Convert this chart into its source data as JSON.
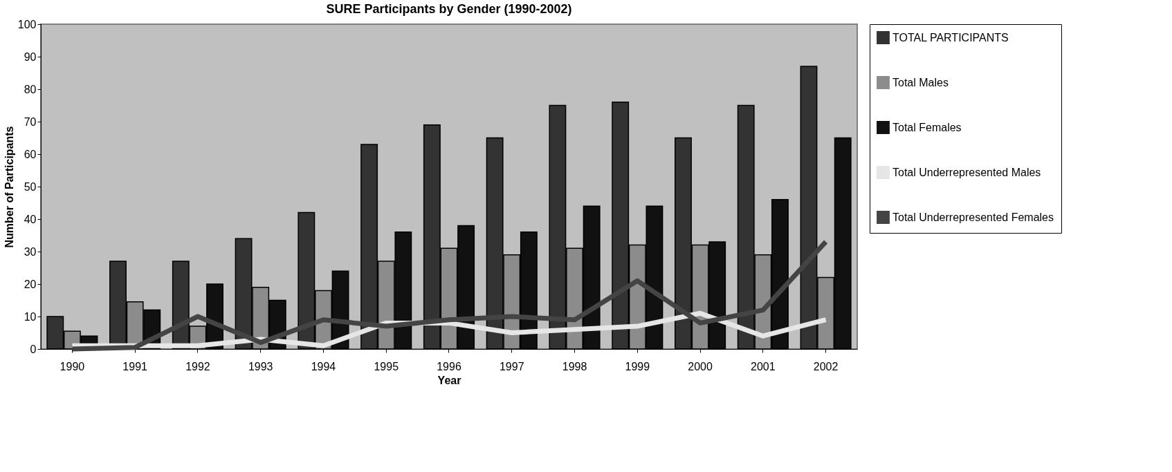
{
  "chart_data": {
    "type": "bar",
    "title": "SURE Participants by Gender (1990-2002)",
    "xlabel": "Year",
    "ylabel": "Number of Participants",
    "categories": [
      "1990",
      "1991",
      "1992",
      "1993",
      "1994",
      "1995",
      "1996",
      "1997",
      "1998",
      "1999",
      "2000",
      "2001",
      "2002"
    ],
    "series": [
      {
        "name": "TOTAL PARTICIPANTS",
        "color": "#333333",
        "values": [
          10,
          27,
          27,
          34,
          42,
          63,
          69,
          65,
          75,
          76,
          65,
          75,
          87
        ]
      },
      {
        "name": "Total Males",
        "color": "#8c8c8c",
        "values": [
          5.5,
          14.5,
          7,
          19,
          18,
          27,
          31,
          29,
          31,
          32,
          32,
          29,
          22
        ]
      },
      {
        "name": "Total Females",
        "color": "#111111",
        "values": [
          4,
          12,
          20,
          15,
          24,
          36,
          38,
          36,
          44,
          44,
          33,
          46,
          65
        ]
      },
      {
        "name": "Total Underrepresented Males",
        "color": "#e6e6e6",
        "type": "line",
        "values": [
          1,
          1,
          1,
          3,
          1,
          8,
          8,
          5,
          6,
          7,
          11,
          4,
          9
        ]
      },
      {
        "name": "Total Underrepresented Females",
        "color": "#444444",
        "type": "line",
        "values": [
          0,
          0.5,
          10,
          2,
          9,
          7,
          9,
          10,
          9,
          21,
          8,
          12,
          33
        ]
      }
    ],
    "ylim": [
      0,
      100
    ],
    "yticks": [
      0,
      10,
      20,
      30,
      40,
      50,
      60,
      70,
      80,
      90,
      100
    ],
    "grid": false,
    "legend": "right",
    "marker": "none"
  }
}
